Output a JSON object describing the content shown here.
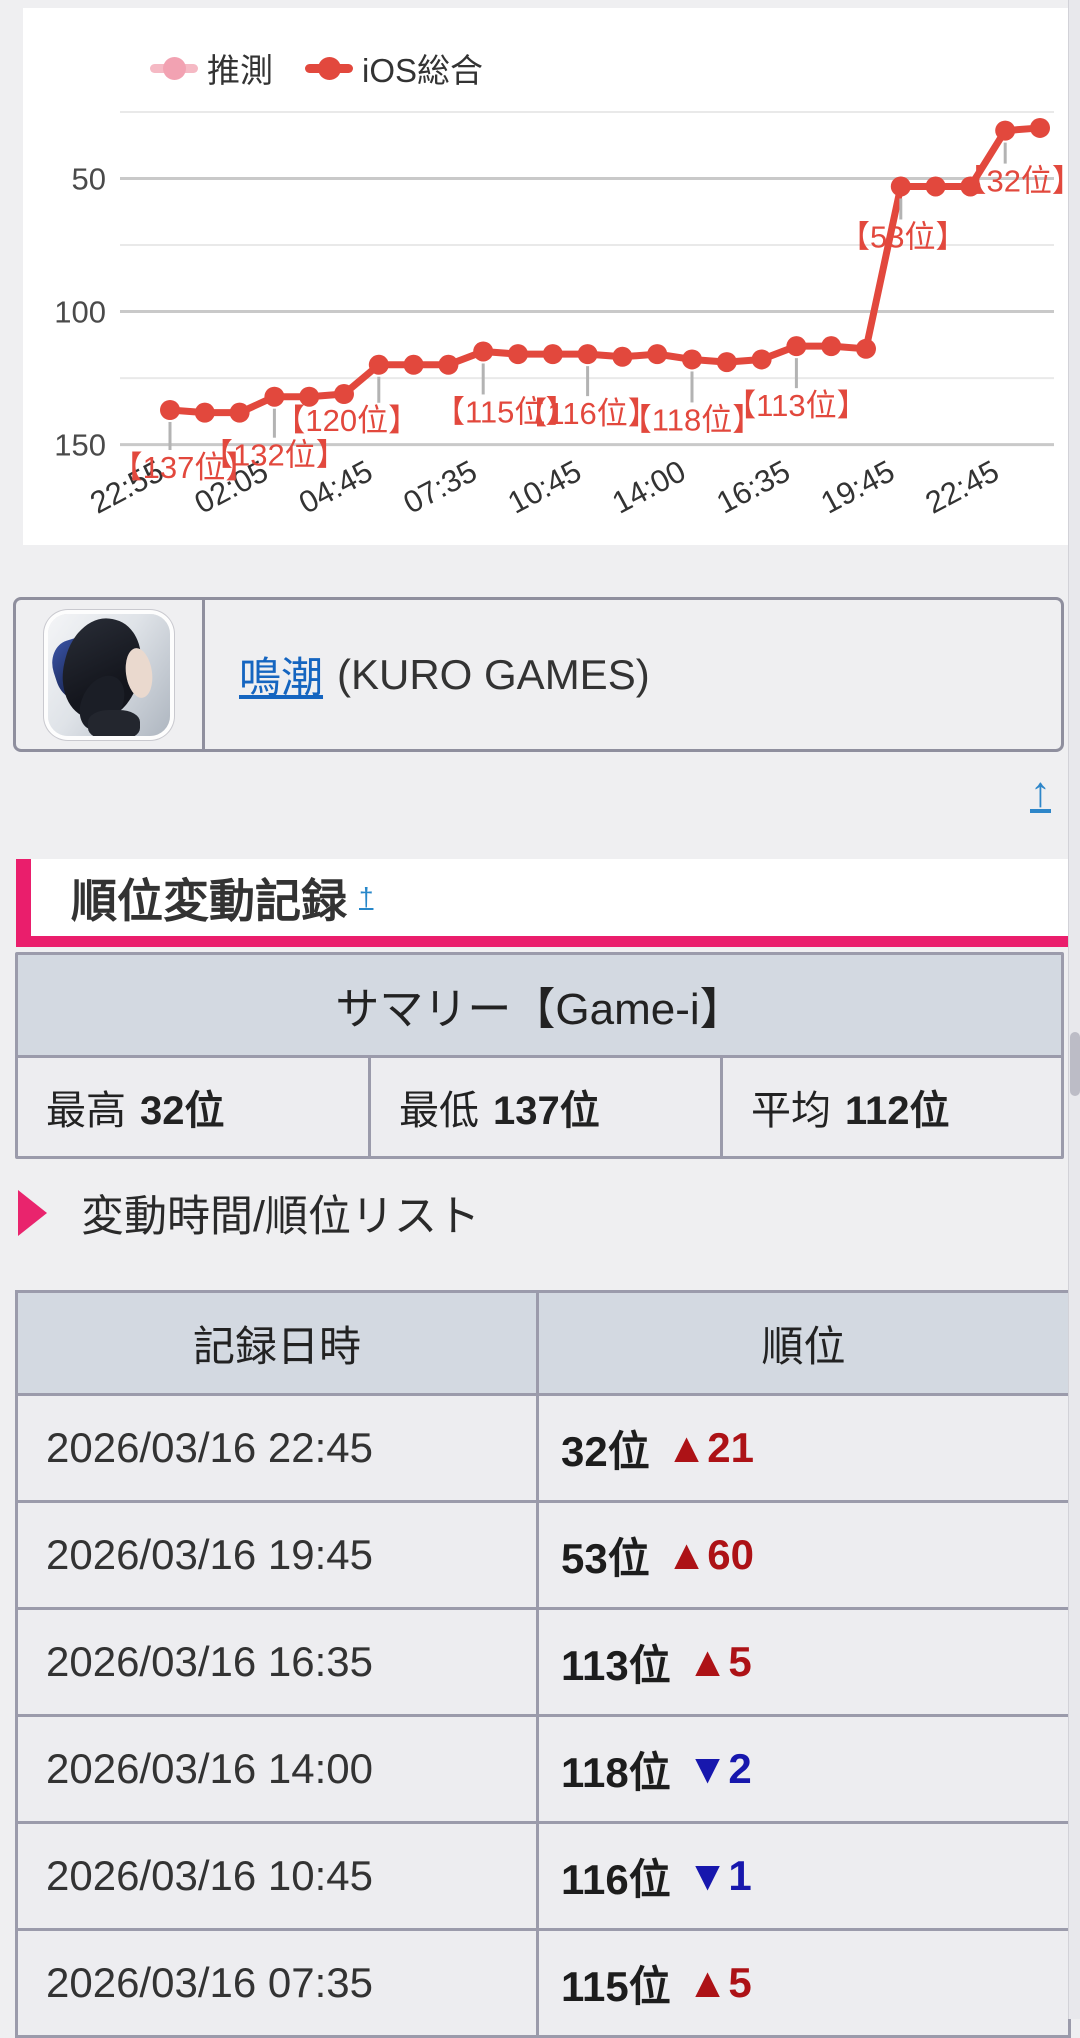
{
  "chart": {
    "legend": [
      {
        "label": "推測",
        "line_color": "#f5b9c4",
        "dot_color": "#f2a2b2"
      },
      {
        "label": "iOS総合",
        "line_color": "#e2483d",
        "dot_color": "#e2483d"
      }
    ],
    "chart_data": {
      "type": "line",
      "title": "",
      "xlabel": "",
      "ylabel": "",
      "y_inverted": true,
      "y_ticks": [
        50,
        100,
        150
      ],
      "y_minor_gridlines": [
        25,
        75,
        125
      ],
      "ylim": [
        20,
        158
      ],
      "x_tick_labels": [
        "22:55",
        "02:05",
        "04:45",
        "07:35",
        "10:45",
        "14:00",
        "16:35",
        "19:45",
        "22:45"
      ],
      "x_tick_every": 3,
      "legend_position": "top",
      "grid": true,
      "series": [
        {
          "name": "iOS総合",
          "color": "#e2483d",
          "values": [
            137,
            138,
            138,
            132,
            132,
            131,
            120,
            120,
            120,
            115,
            116,
            116,
            116,
            117,
            116,
            118,
            119,
            118,
            113,
            113,
            114,
            53,
            53,
            53,
            32,
            31
          ]
        },
        {
          "name": "推測",
          "color": "#f5b9c4",
          "values": []
        }
      ],
      "annotations": [
        {
          "index": 0,
          "label": "【137位】"
        },
        {
          "index": 3,
          "label": "【132位】"
        },
        {
          "index": 6,
          "label": "【120位】"
        },
        {
          "index": 9,
          "label": "【115位】"
        },
        {
          "index": 12,
          "label": "【116位】"
        },
        {
          "index": 15,
          "label": "【118位】"
        },
        {
          "index": 18,
          "label": "【113位】"
        },
        {
          "index": 21,
          "label": "【53位】"
        },
        {
          "index": 24,
          "label": "【32位】"
        }
      ]
    }
  },
  "game": {
    "name": "鳴潮",
    "developer": "(KURO GAMES)"
  },
  "top_link": "↑",
  "section": {
    "title": "順位変動記録",
    "sup_link": "†"
  },
  "summary": {
    "header": "サマリー【Game-i】",
    "cells": [
      {
        "label": "最高",
        "value": "32位"
      },
      {
        "label": "最低",
        "value": "137位"
      },
      {
        "label": "平均",
        "value": "112位"
      }
    ]
  },
  "list_title": "変動時間/順位リスト",
  "history": {
    "columns": [
      "記録日時",
      "順位"
    ],
    "up_glyph": "▲",
    "down_glyph": "▼",
    "up_color": "#ad1216",
    "down_color": "#1717ad",
    "rows": [
      {
        "datetime": "2026/03/16 22:45",
        "rank": "32位",
        "delta": "21",
        "dir": "up"
      },
      {
        "datetime": "2026/03/16 19:45",
        "rank": "53位",
        "delta": "60",
        "dir": "up"
      },
      {
        "datetime": "2026/03/16 16:35",
        "rank": "113位",
        "delta": "5",
        "dir": "up"
      },
      {
        "datetime": "2026/03/16 14:00",
        "rank": "118位",
        "delta": "2",
        "dir": "down"
      },
      {
        "datetime": "2026/03/16 10:45",
        "rank": "116位",
        "delta": "1",
        "dir": "down"
      },
      {
        "datetime": "2026/03/16 07:35",
        "rank": "115位",
        "delta": "5",
        "dir": "up"
      }
    ]
  }
}
